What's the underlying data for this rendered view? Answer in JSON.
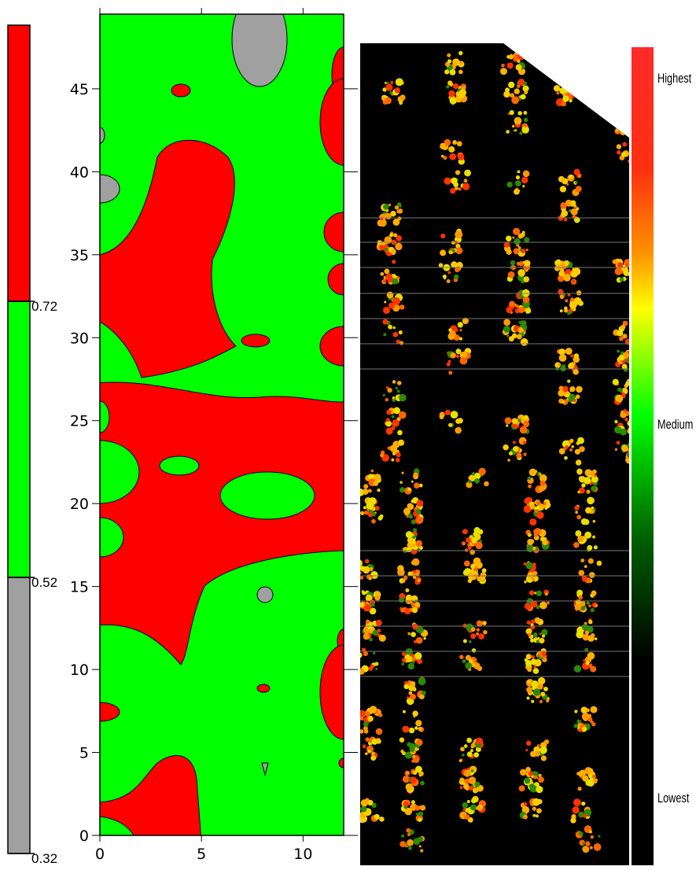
{
  "chart_data": {
    "type": "contour",
    "xlim": [
      0,
      12
    ],
    "ylim": [
      0,
      49.5
    ],
    "xticks": [
      0,
      5,
      10
    ],
    "yticks": [
      0,
      5,
      10,
      15,
      20,
      25,
      30,
      35,
      40,
      45
    ],
    "colorbar": {
      "levels": [
        0.32,
        0.52,
        0.72
      ],
      "lim": [
        0.32,
        0.92
      ],
      "colors": [
        "#a0a0a0",
        "#00ff00",
        "#ff0000"
      ]
    }
  },
  "image_legend": {
    "labels": [
      "Highest",
      "Medium",
      "Lowest"
    ]
  }
}
